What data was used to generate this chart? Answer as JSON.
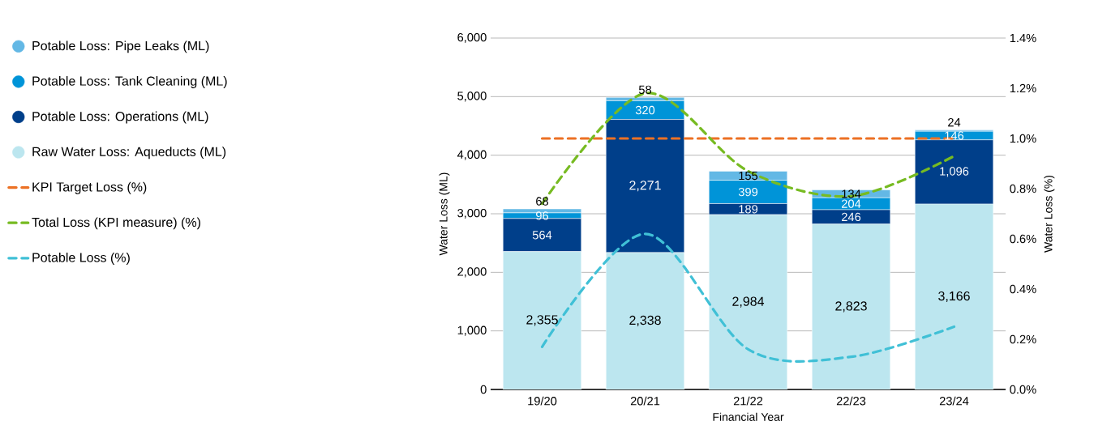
{
  "chart_data": {
    "type": "bar",
    "stacked": true,
    "categories": [
      "19/20",
      "20/21",
      "21/22",
      "22/23",
      "23/24"
    ],
    "xlabel": "Financial Year",
    "ylabel": "Water Loss (ML)",
    "y2label": "Water Loss (%)",
    "ylim": [
      0,
      6000
    ],
    "yticks": [
      {
        "value": 0,
        "label": "0"
      },
      {
        "value": 1000,
        "label": "1,000"
      },
      {
        "value": 2000,
        "label": "2,000"
      },
      {
        "value": 3000,
        "label": "3,000"
      },
      {
        "value": 4000,
        "label": "4,000"
      },
      {
        "value": 5000,
        "label": "5,000"
      },
      {
        "value": 6000,
        "label": "6,000"
      }
    ],
    "y2lim": [
      0,
      1.4
    ],
    "y2ticks": [
      {
        "value": 0,
        "label": "0.0%"
      },
      {
        "value": 0.2,
        "label": "0.2%"
      },
      {
        "value": 0.4,
        "label": "0.4%"
      },
      {
        "value": 0.6,
        "label": "0.6%"
      },
      {
        "value": 0.8,
        "label": "0.8%"
      },
      {
        "value": 1.0,
        "label": "1.0%"
      },
      {
        "value": 1.2,
        "label": "1.2%"
      },
      {
        "value": 1.4,
        "label": "1.4%"
      }
    ],
    "grid": "y",
    "legend": "left",
    "series": [
      {
        "name": "Raw Water Loss: Aqueducts (ML)",
        "color": "#bce6ef",
        "values": [
          2355,
          2338,
          2984,
          2823,
          3166
        ],
        "value_labels": [
          "2,355",
          "2,338",
          "2,984",
          "2,823",
          "3,166"
        ]
      },
      {
        "name": "Potable Loss: Operations (ML)",
        "color": "#003f8a",
        "values": [
          564,
          2271,
          189,
          246,
          1096
        ],
        "value_labels": [
          "564",
          "2,271",
          "189",
          "246",
          "1,096"
        ]
      },
      {
        "name": "Potable Loss: Tank Cleaning (ML)",
        "color": "#0094d8",
        "values": [
          96,
          320,
          399,
          204,
          146
        ],
        "value_labels": [
          "96",
          "320",
          "399",
          "204",
          "146"
        ]
      },
      {
        "name": "Potable Loss: Pipe Leaks (ML)",
        "color": "#63b8e5",
        "values": [
          68,
          58,
          155,
          134,
          24
        ],
        "value_labels": [
          "68",
          "58",
          "155",
          "134",
          "24"
        ]
      },
      {
        "name": "KPI Target Loss (%)",
        "type": "line",
        "axis": "y2",
        "line_style": "dashed",
        "color": "#ec7124",
        "values": [
          1.0,
          1.0,
          1.0,
          1.0,
          1.0
        ]
      },
      {
        "name": "Total Loss (KPI measure) (%)",
        "type": "line",
        "axis": "y2",
        "line_style": "dashed",
        "color": "#77bb22",
        "values": [
          0.74,
          1.18,
          0.87,
          0.77,
          0.93
        ]
      },
      {
        "name": "Potable Loss (%)",
        "type": "line",
        "axis": "y2",
        "line_style": "dashed",
        "color": "#40c0d6",
        "values": [
          0.17,
          0.62,
          0.16,
          0.13,
          0.25
        ]
      }
    ]
  }
}
